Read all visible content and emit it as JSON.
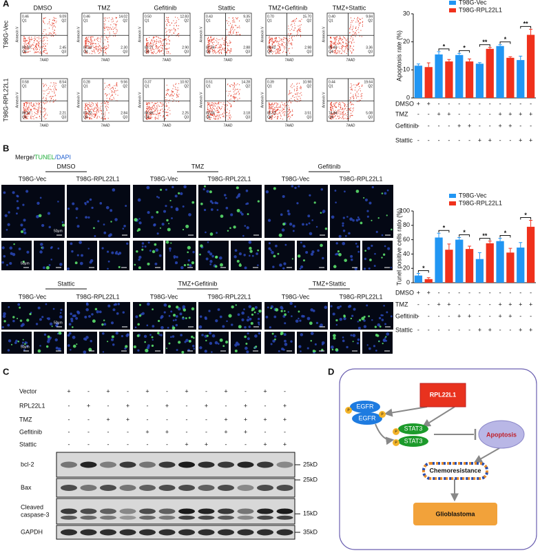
{
  "panel_a": {
    "label": "A",
    "row_labels": [
      "T98G-Vec",
      "T98G-RPL22L1"
    ],
    "conditions": [
      "DMSO",
      "TMZ",
      "Gefitinib",
      "Stattic",
      "TMZ+Gefitinib",
      "TMZ+Stattic"
    ],
    "quadrant_labels": [
      "Q1",
      "Q2",
      "Q3",
      "Q4"
    ],
    "x_axis_label": "7AAD",
    "y_axis_label": "Annexin V",
    "plots": [
      [
        [
          "0.46",
          "9.09",
          "2.45",
          "88.00"
        ],
        [
          "0.46",
          "14.02",
          "2.30",
          "83.22"
        ],
        [
          "0.50",
          "12.83",
          "2.90",
          "83.77"
        ],
        [
          "0.43",
          "9.35",
          "2.88",
          "87.34"
        ],
        [
          "0.70",
          "15.70",
          "2.98",
          "80.62"
        ],
        [
          "0.40",
          "9.84",
          "3.36",
          "86.40"
        ]
      ],
      [
        [
          "0.58",
          "8.54",
          "2.21",
          "88.67"
        ],
        [
          "0.28",
          "9.56",
          "2.84",
          "87.32"
        ],
        [
          "0.37",
          "10.92",
          "2.25",
          "86.46"
        ],
        [
          "0.51",
          "14.28",
          "3.18",
          "82.03"
        ],
        [
          "0.39",
          "10.98",
          "3.51",
          "85.12"
        ],
        [
          "0.44",
          "19.64",
          "5.08",
          "74.84"
        ]
      ]
    ],
    "chart": {
      "type": "bar",
      "y_label": "Apoptosis rate (%)",
      "ylim": [
        0,
        30
      ],
      "yticks": [
        0,
        10,
        20,
        30
      ],
      "series": [
        {
          "name": "T98G-Vec",
          "color": "#2196f3",
          "values": [
            11.5,
            15.5,
            15.3,
            12.2,
            18.5,
            13.5
          ],
          "errors": [
            0.6,
            1.0,
            0.6,
            0.4,
            0.5,
            1.4
          ]
        },
        {
          "name": "T98G-RPL22L1",
          "color": "#f0311c",
          "values": [
            11.0,
            13.0,
            13.0,
            17.5,
            14.3,
            22.5
          ],
          "errors": [
            1.5,
            0.7,
            0.9,
            0.5,
            0.4,
            2.0
          ]
        }
      ],
      "significance": [
        null,
        "*",
        "*",
        "**",
        "*",
        "**"
      ],
      "treatment_rows": [
        {
          "label": "DMSO",
          "signs": [
            "+",
            "+",
            "-",
            "-",
            "-",
            "-",
            "-",
            "-",
            "-",
            "-",
            "-",
            "-"
          ]
        },
        {
          "label": "TMZ",
          "signs": [
            "-",
            "-",
            "+",
            "+",
            "-",
            "-",
            "-",
            "-",
            "+",
            "+",
            "+",
            "+"
          ]
        },
        {
          "label": "Gefitinib",
          "signs": [
            "-",
            "-",
            "-",
            "-",
            "+",
            "+",
            "-",
            "-",
            "+",
            "+",
            "-",
            "-"
          ]
        },
        {
          "label": "Stattic",
          "signs": [
            "-",
            "-",
            "-",
            "-",
            "-",
            "-",
            "+",
            "+",
            "-",
            "-",
            "+",
            "+"
          ]
        }
      ]
    }
  },
  "panel_b": {
    "label": "B",
    "stain_label": [
      "Merge/",
      "TUNEL",
      "/DAPI"
    ],
    "conditions": [
      "DMSO",
      "TMZ",
      "Gefitinib",
      "Stattic",
      "TMZ+Gefitinib",
      "TMZ+Stattic"
    ],
    "cell_lines": [
      "T98G-Vec",
      "T98G-RPL22L1"
    ],
    "scale_bar": "50μm",
    "chart": {
      "type": "bar",
      "y_label": "Tunel positive cells ratio (%)",
      "ylim": [
        0,
        100
      ],
      "yticks": [
        0,
        20,
        40,
        60,
        80,
        100
      ],
      "series": [
        {
          "name": "T98G-Vec",
          "color": "#2196f3",
          "values": [
            10,
            63,
            60,
            33,
            58,
            49
          ],
          "errors": [
            3,
            6,
            3,
            9,
            4,
            7
          ]
        },
        {
          "name": "T98G-RPL22L1",
          "color": "#f0311c",
          "values": [
            5,
            46,
            47,
            55,
            42,
            78
          ],
          "errors": [
            2,
            8,
            4,
            3,
            6,
            9
          ]
        }
      ],
      "significance": [
        "*",
        "*",
        "*",
        "**",
        "*",
        "*"
      ],
      "treatment_rows": [
        {
          "label": "DMSO",
          "signs": [
            "+",
            "+",
            "-",
            "-",
            "-",
            "-",
            "-",
            "-",
            "-",
            "-",
            "-",
            "-"
          ]
        },
        {
          "label": "TMZ",
          "signs": [
            "-",
            "-",
            "+",
            "+",
            "-",
            "-",
            "-",
            "-",
            "+",
            "+",
            "+",
            "+"
          ]
        },
        {
          "label": "Gefitinib",
          "signs": [
            "-",
            "-",
            "-",
            "-",
            "+",
            "+",
            "-",
            "-",
            "+",
            "+",
            "-",
            "-"
          ]
        },
        {
          "label": "Stattic",
          "signs": [
            "-",
            "-",
            "-",
            "-",
            "-",
            "-",
            "+",
            "+",
            "-",
            "-",
            "+",
            "+"
          ]
        }
      ]
    }
  },
  "panel_c": {
    "label": "C",
    "treatment_rows": [
      {
        "label": "Vector",
        "signs": [
          "+",
          "-",
          "+",
          "-",
          "+",
          "-",
          "+",
          "-",
          "+",
          "-",
          "+",
          "-"
        ]
      },
      {
        "label": "RPL22L1",
        "signs": [
          "-",
          "+",
          "-",
          "+",
          "-",
          "+",
          "-",
          "+",
          "-",
          "+",
          "-",
          "+"
        ]
      },
      {
        "label": "TMZ",
        "signs": [
          "-",
          "-",
          "+",
          "+",
          "-",
          "-",
          "-",
          "-",
          "+",
          "+",
          "+",
          "+"
        ]
      },
      {
        "label": "Gefitinib",
        "signs": [
          "-",
          "-",
          "-",
          "-",
          "+",
          "+",
          "-",
          "-",
          "+",
          "+",
          "-",
          "-"
        ]
      },
      {
        "label": "Stattic",
        "signs": [
          "-",
          "-",
          "-",
          "-",
          "-",
          "-",
          "+",
          "+",
          "-",
          "-",
          "+",
          "+"
        ]
      }
    ],
    "blots": [
      {
        "label_lines": [
          "bcl-2"
        ],
        "marker": "25kD"
      },
      {
        "label_lines": [
          "Bax"
        ],
        "marker": "25kD"
      },
      {
        "label_lines": [
          "Cleaved",
          "caspase-3"
        ],
        "marker": "15kD"
      },
      {
        "label_lines": [
          "GAPDH"
        ],
        "marker": "35kD"
      }
    ]
  },
  "panel_d": {
    "label": "D",
    "nodes": {
      "rpl22l1": "RPL22L1",
      "egfr": "EGFR",
      "stat3": "STAT3",
      "phospho": "P",
      "apoptosis": "Apoptosis",
      "chemoresistance": "Chemoresistance",
      "glioblastoma": "Glioblastoma"
    }
  }
}
